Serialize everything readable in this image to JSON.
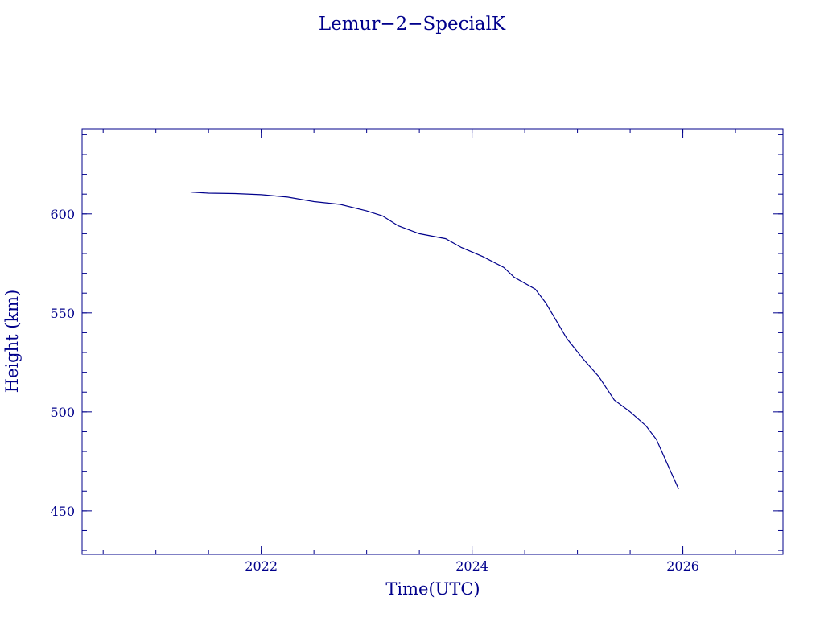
{
  "chart_data": {
    "type": "line",
    "title": "Lemur−2−SpecialK",
    "xlabel": "Time(UTC)",
    "ylabel": "Height (km)",
    "xlim": [
      2020.3,
      2026.95
    ],
    "ylim": [
      428,
      643
    ],
    "x_ticks": [
      2022,
      2024,
      2026
    ],
    "x_tick_labels": [
      "2022",
      "2024",
      "2026"
    ],
    "x_minor_step": 0.5,
    "y_ticks": [
      450,
      500,
      550,
      600
    ],
    "y_tick_labels": [
      "450",
      "500",
      "550",
      "600"
    ],
    "y_minor_step": 10,
    "grid": false,
    "color": "#00008b",
    "series": [
      {
        "x": [
          2021.33,
          2021.5,
          2021.75,
          2022.0,
          2022.25,
          2022.5,
          2022.75,
          2023.0,
          2023.15,
          2023.3,
          2023.5,
          2023.75,
          2023.9,
          2024.1,
          2024.3,
          2024.4,
          2024.6,
          2024.7,
          2024.8,
          2024.9,
          2025.05,
          2025.2,
          2025.35,
          2025.5,
          2025.65,
          2025.75,
          2025.85,
          2025.96
        ],
        "y": [
          611,
          610.5,
          610.3,
          609.7,
          608.5,
          606.2,
          604.8,
          601.5,
          599,
          594,
          590,
          587.5,
          583,
          578.5,
          573,
          568,
          562,
          555,
          546,
          537,
          527,
          518,
          506,
          500,
          493,
          486,
          474,
          461
        ]
      }
    ]
  }
}
